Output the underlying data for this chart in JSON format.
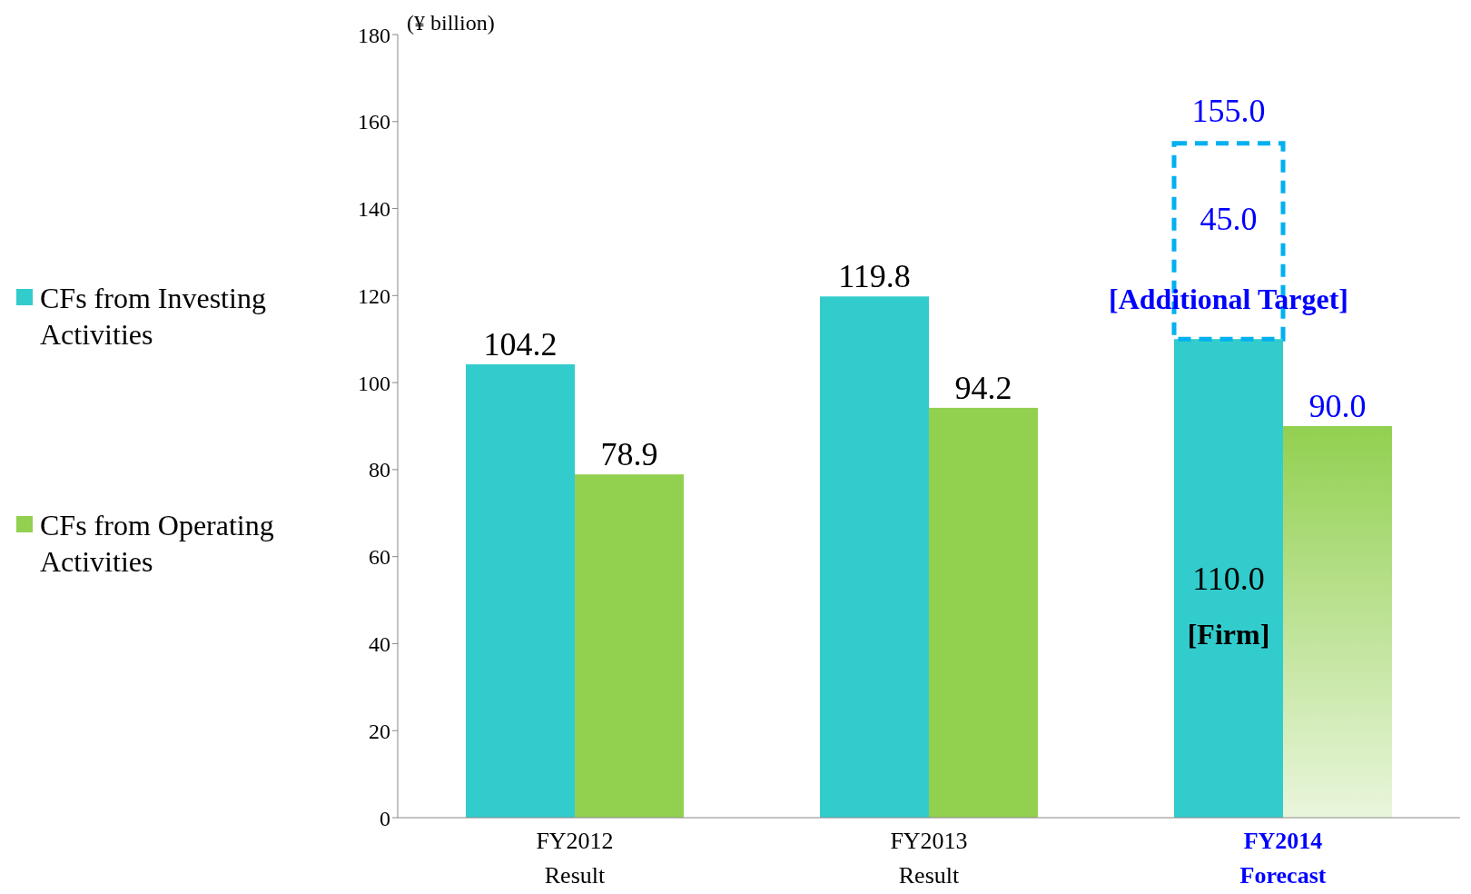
{
  "chart_data": {
    "type": "bar",
    "ylabel": "(¥ billion)",
    "categories": [
      "FY2012\nResult",
      "FY2013\nResult",
      "FY2014\nForecast"
    ],
    "series": [
      {
        "name": "CFs from Investing Activities",
        "color": "#33cccc",
        "values": [
          104.2,
          119.8,
          110.0
        ],
        "value_labels": [
          "104.2",
          "119.8",
          "110.0"
        ]
      },
      {
        "color": "#00b0f0",
        "line_style": "dashed",
        "base": [
          null,
          null,
          110.0
        ],
        "values": [
          null,
          null,
          45.0
        ],
        "value_labels": [
          null,
          null,
          "45.0"
        ]
      },
      {
        "name": "CFs from Operating Activities",
        "color": "#92d050",
        "values": [
          78.9,
          94.2,
          90.0
        ],
        "value_labels": [
          "78.9",
          "94.2",
          "90.0"
        ]
      }
    ],
    "annotations": [
      {
        "text": "155.0",
        "x": "FY2014\nForecast",
        "y": 155.0
      },
      {
        "text": "[Firm]",
        "x": "FY2014\nForecast",
        "y": 42
      },
      {
        "text": "[Additional Target]",
        "x": "FY2014\nForecast",
        "y": 119
      }
    ],
    "ylim": [
      0,
      180
    ],
    "yticks": [
      0,
      20,
      40,
      60,
      80,
      100,
      120,
      140,
      160,
      180
    ],
    "grid": false,
    "legend": "left"
  }
}
